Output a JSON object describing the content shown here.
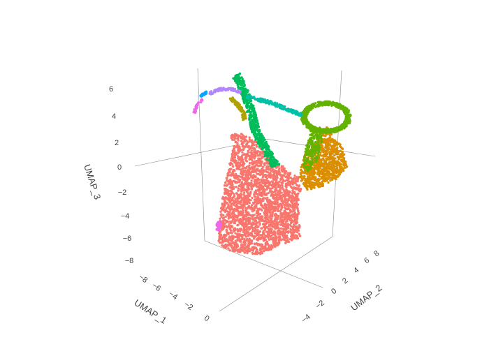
{
  "chart_data": {
    "type": "scatter",
    "title": "",
    "axes": {
      "z": {
        "label": "UMAP_3",
        "ticks": [
          "6",
          "4",
          "2",
          "0",
          "−2",
          "−4",
          "−6",
          "−8"
        ]
      },
      "x": {
        "label": "UMAP_1",
        "ticks": [
          "−8",
          "−6",
          "−4",
          "−2",
          "0"
        ]
      },
      "y": {
        "label": "UMAP_2",
        "ticks": [
          "−4",
          "−2",
          "0",
          "2",
          "4",
          "6",
          "8"
        ]
      }
    },
    "grid": false,
    "legend": "none",
    "clusters": [
      {
        "color": "#F8766D",
        "approx_center": {
          "x": -2.5,
          "y": -1.0,
          "z": -2.5
        },
        "approx_points": 4500
      },
      {
        "color": "#DB8E00",
        "approx_center": {
          "x": 2.0,
          "y": 6.0,
          "z": 0.5
        },
        "approx_points": 1200
      },
      {
        "color": "#64B200",
        "approx_center": {
          "x": 3.0,
          "y": 7.0,
          "z": 4.0
        },
        "approx_points": 1200
      },
      {
        "color": "#00BD5C",
        "approx_center": {
          "x": -3.0,
          "y": 1.0,
          "z": 3.5
        },
        "approx_points": 900
      },
      {
        "color": "#00C1A7",
        "approx_center": {
          "x": -1.0,
          "y": 3.0,
          "z": 4.5
        },
        "approx_points": 300
      },
      {
        "color": "#AEA200",
        "approx_center": {
          "x": -5.5,
          "y": -2.0,
          "z": 4.5
        },
        "approx_points": 150
      },
      {
        "color": "#B385FF",
        "approx_center": {
          "x": -6.0,
          "y": -3.0,
          "z": 6.0
        },
        "approx_points": 100
      },
      {
        "color": "#00A6FF",
        "approx_center": {
          "x": -7.0,
          "y": -4.0,
          "z": 5.5
        },
        "approx_points": 40
      },
      {
        "color": "#EF67EB",
        "approx_center": {
          "x": -7.5,
          "y": -4.5,
          "z": 4.5
        },
        "approx_points": 80
      }
    ]
  }
}
